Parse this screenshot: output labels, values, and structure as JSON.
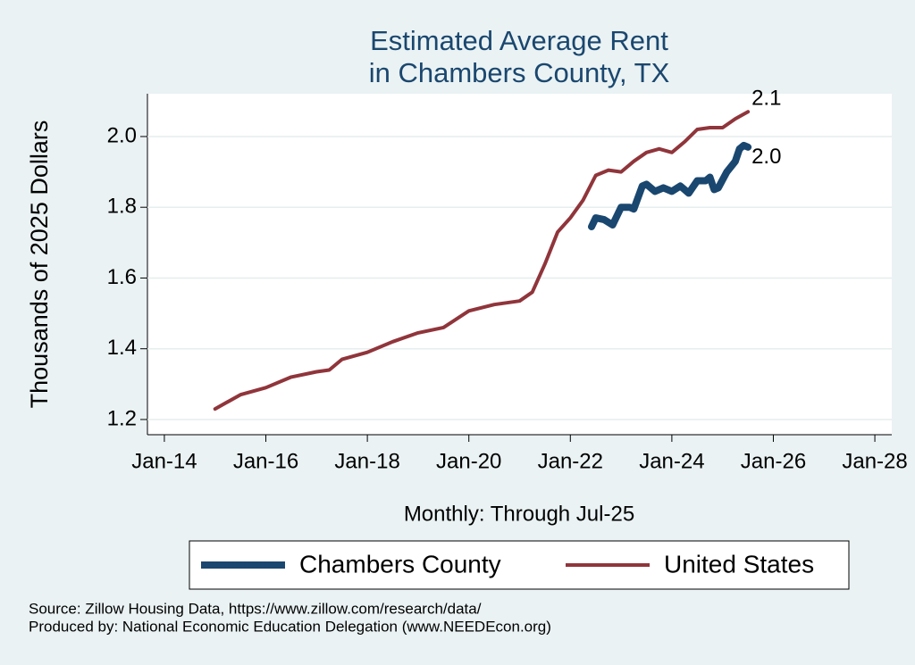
{
  "chart_data": {
    "type": "line",
    "title": [
      "Estimated Average Rent",
      "in Chambers County, TX"
    ],
    "y_label": "Thousands of 2025 Dollars",
    "x_label": "Monthly: Through Jul-25",
    "notes": [
      "Source: Zillow Housing Data, https://www.zillow.com/research/data/",
      "Produced by: National Economic Education Delegation (www.NEEDEcon.org)"
    ],
    "xlim": [
      "2013-09",
      "2028-05"
    ],
    "xticks": [
      {
        "value": "2014-01",
        "label": "Jan-14"
      },
      {
        "value": "2016-01",
        "label": "Jan-16"
      },
      {
        "value": "2018-01",
        "label": "Jan-18"
      },
      {
        "value": "2020-01",
        "label": "Jan-20"
      },
      {
        "value": "2022-01",
        "label": "Jan-22"
      },
      {
        "value": "2024-01",
        "label": "Jan-24"
      },
      {
        "value": "2026-01",
        "label": "Jan-26"
      },
      {
        "value": "2028-01",
        "label": "Jan-28"
      }
    ],
    "ylim": [
      1.157,
      2.121
    ],
    "yticks": [
      1.2,
      1.4,
      1.6,
      1.8,
      {
        "value": 2,
        "label": "2.0"
      }
    ],
    "grid": true,
    "series": [
      {
        "name": "Chambers County",
        "color": "#1a476f",
        "end_label": "2.0",
        "x": [
          "2022-06",
          "2022-07",
          "2022-09",
          "2022-11",
          "2023-01",
          "2023-03",
          "2023-04",
          "2023-06",
          "2023-07",
          "2023-09",
          "2023-11",
          "2024-01",
          "2024-03",
          "2024-05",
          "2024-07",
          "2024-09",
          "2024-10",
          "2024-11",
          "2024-12",
          "2025-02",
          "2025-04",
          "2025-05",
          "2025-06",
          "2025-07"
        ],
        "values": [
          1.745,
          1.77,
          1.765,
          1.75,
          1.8,
          1.8,
          1.795,
          1.86,
          1.865,
          1.845,
          1.855,
          1.845,
          1.86,
          1.84,
          1.875,
          1.875,
          1.885,
          1.85,
          1.855,
          1.9,
          1.93,
          1.965,
          1.975,
          1.97
        ]
      },
      {
        "name": "United States",
        "color": "#90353b",
        "end_label": "2.1",
        "x": [
          "2015-01",
          "2015-07",
          "2016-01",
          "2016-07",
          "2017-01",
          "2017-04",
          "2017-07",
          "2018-01",
          "2018-07",
          "2019-01",
          "2019-07",
          "2020-01",
          "2020-07",
          "2021-01",
          "2021-04",
          "2021-07",
          "2021-10",
          "2022-01",
          "2022-04",
          "2022-07",
          "2022-10",
          "2023-01",
          "2023-04",
          "2023-07",
          "2023-10",
          "2024-01",
          "2024-04",
          "2024-07",
          "2024-10",
          "2025-01",
          "2025-04",
          "2025-07"
        ],
        "values": [
          1.23,
          1.27,
          1.29,
          1.32,
          1.335,
          1.34,
          1.37,
          1.39,
          1.42,
          1.445,
          1.46,
          1.507,
          1.525,
          1.535,
          1.56,
          1.64,
          1.73,
          1.77,
          1.82,
          1.89,
          1.905,
          1.9,
          1.93,
          1.955,
          1.965,
          1.955,
          1.985,
          2.02,
          2.025,
          2.025,
          2.05,
          2.07
        ]
      }
    ]
  }
}
